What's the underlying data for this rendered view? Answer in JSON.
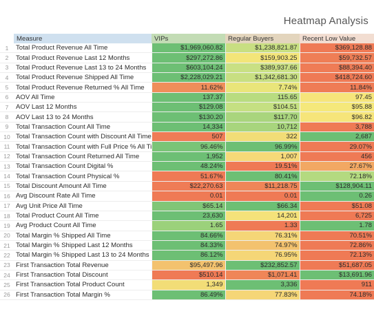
{
  "title": "Heatmap Analysis",
  "headers": {
    "measure": "Measure",
    "vips": "VIPs",
    "regular": "Regular Buyers",
    "recent_low": "Recent Low Value"
  },
  "rows": [
    {
      "n": "1",
      "measure": "Total Product Revenue All Time",
      "v1": "$1,969,060.82",
      "v2": "$1,238,821.87",
      "v3": "$369,128.88",
      "c1": "#6dbf74",
      "c2": "#c8df82",
      "c3": "#ef7a55"
    },
    {
      "n": "2",
      "measure": "Total Product Revenue Last 12 Months",
      "v1": "$297,272.86",
      "v2": "$159,903.25",
      "v3": "$59,732.57",
      "c1": "#6dbf74",
      "c2": "#f3e579",
      "c3": "#ef7e56"
    },
    {
      "n": "3",
      "measure": "Total Product Revenue Last 13 to 24 Months",
      "v1": "$603,104.24",
      "v2": "$389,937.66",
      "v3": "$88,394.40",
      "c1": "#6dbf74",
      "c2": "#c9e084",
      "c3": "#ef7c56"
    },
    {
      "n": "4",
      "measure": "Total Product Revenue Shipped All Time",
      "v1": "$2,228,029.21",
      "v2": "$1,342,681.30",
      "v3": "$418,724.60",
      "c1": "#6dbf74",
      "c2": "#c8df82",
      "c3": "#ef7a55"
    },
    {
      "n": "5",
      "measure": "Total Product Revenue Returned % All Time",
      "v1": "11.62%",
      "v2": "7.74%",
      "v3": "11.84%",
      "c1": "#ef8e5a",
      "c2": "#e9e57a",
      "c3": "#ef7c56"
    },
    {
      "n": "6",
      "measure": "AOV All Time",
      "v1": "137.37",
      "v2": "115.65",
      "v3": "97.45",
      "c1": "#6dbf74",
      "c2": "#b8dc80",
      "c3": "#f6e57a"
    },
    {
      "n": "7",
      "measure": "AOV Last 12 Months",
      "v1": "$129.08",
      "v2": "$104.51",
      "v3": "$95.88",
      "c1": "#6dbf74",
      "c2": "#c5e082",
      "c3": "#f5e87b"
    },
    {
      "n": "8",
      "measure": "AOV Last 13 to 24 Months",
      "v1": "$130.20",
      "v2": "$117.70",
      "v3": "$96.82",
      "c1": "#6dbf74",
      "c2": "#a9d57d",
      "c3": "#f6e57a"
    },
    {
      "n": "9",
      "measure": "Total Transaction Count All Time",
      "v1": "14,334",
      "v2": "10,712",
      "v3": "3,788",
      "c1": "#6dbf74",
      "c2": "#a8d57d",
      "c3": "#ef7a55"
    },
    {
      "n": "10",
      "measure": "Total Transaction Count with Discount All Time",
      "v1": "507",
      "v2": "322",
      "v3": "2,687",
      "c1": "#ef7c56",
      "c2": "#f2dd77",
      "c3": "#6dbf74"
    },
    {
      "n": "11",
      "measure": "Total Transaction Count with Full Price % All Time",
      "v1": "96.46%",
      "v2": "96.99%",
      "v3": "29.07%",
      "c1": "#7ac477",
      "c2": "#6dbf74",
      "c3": "#ef7a55"
    },
    {
      "n": "12",
      "measure": "Total Transaction Count Returned All Time",
      "v1": "1,952",
      "v2": "1,007",
      "v3": "456",
      "c1": "#6dbf74",
      "c2": "#f6d978",
      "c3": "#ef7a55"
    },
    {
      "n": "13",
      "measure": "Total Transaction Count Digital %",
      "v1": "48.24%",
      "v2": "19.51%",
      "v3": "27.67%",
      "c1": "#6dbf74",
      "c2": "#ef7a55",
      "c3": "#f2a863"
    },
    {
      "n": "14",
      "measure": "Total Transaction Count Physical %",
      "v1": "51.67%",
      "v2": "80.41%",
      "v3": "72.18%",
      "c1": "#ef7a55",
      "c2": "#6dbf74",
      "c3": "#b4da80"
    },
    {
      "n": "15",
      "measure": "Total Discount Amount All Time",
      "v1": "$22,270.63",
      "v2": "$11,218.75",
      "v3": "$128,904.11",
      "c1": "#ef7c56",
      "c2": "#ef8658",
      "c3": "#6dbf74"
    },
    {
      "n": "16",
      "measure": "Avg Discount Rate All Time",
      "v1": "0.01",
      "v2": "0.01",
      "v3": "0.26",
      "c1": "#ef7a55",
      "c2": "#ef7a55",
      "c3": "#6dbf74"
    },
    {
      "n": "17",
      "measure": "Avg Unit Price All Time",
      "v1": "$65.14",
      "v2": "$66.34",
      "v3": "$51.08",
      "c1": "#80c677",
      "c2": "#6dbf74",
      "c3": "#ef7a55"
    },
    {
      "n": "18",
      "measure": "Total Product Count All Time",
      "v1": "23,630",
      "v2": "14,201",
      "v3": "6,725",
      "c1": "#6dbf74",
      "c2": "#f5e27a",
      "c3": "#ef7a55"
    },
    {
      "n": "19",
      "measure": "Avg Product Count All Time",
      "v1": "1.65",
      "v2": "1.33",
      "v3": "1.78",
      "c1": "#9bd17b",
      "c2": "#ef7a55",
      "c3": "#6dbf74"
    },
    {
      "n": "20",
      "measure": "Total Margin % Shipped All Time",
      "v1": "84.66%",
      "v2": "76.31%",
      "v3": "70.51%",
      "c1": "#6dbf74",
      "c2": "#f5d677",
      "c3": "#ef7a55"
    },
    {
      "n": "21",
      "measure": "Total Margin % Shipped Last 12 Months",
      "v1": "84.33%",
      "v2": "74.97%",
      "v3": "72.86%",
      "c1": "#6dbf74",
      "c2": "#f3c26e",
      "c3": "#ef7a55"
    },
    {
      "n": "22",
      "measure": "Total Margin % Shipped Last 13 to 24 Months",
      "v1": "86.12%",
      "v2": "76.95%",
      "v3": "72.13%",
      "c1": "#6dbf74",
      "c2": "#f5d677",
      "c3": "#ef7a55"
    },
    {
      "n": "23",
      "measure": "First Transaction Total Revenue",
      "v1": "$95,497.96",
      "v2": "$232,852.57",
      "v3": "$51,687.05",
      "c1": "#f3c26e",
      "c2": "#6dbf74",
      "c3": "#ef7a55"
    },
    {
      "n": "24",
      "measure": "First Transaction Total Discount",
      "v1": "$510.14",
      "v2": "$1,071.41",
      "v3": "$13,691.96",
      "c1": "#ef7a55",
      "c2": "#ef8658",
      "c3": "#6dbf74"
    },
    {
      "n": "25",
      "measure": "First Transaction Total Product Count",
      "v1": "1,349",
      "v2": "3,336",
      "v3": "911",
      "c1": "#f2dd77",
      "c2": "#6dbf74",
      "c3": "#ef7a55"
    },
    {
      "n": "26",
      "measure": "First Transaction Total Margin %",
      "v1": "86.49%",
      "v2": "77.83%",
      "v3": "74.18%",
      "c1": "#6dbf74",
      "c2": "#f5d677",
      "c3": "#ef7a55"
    }
  ]
}
